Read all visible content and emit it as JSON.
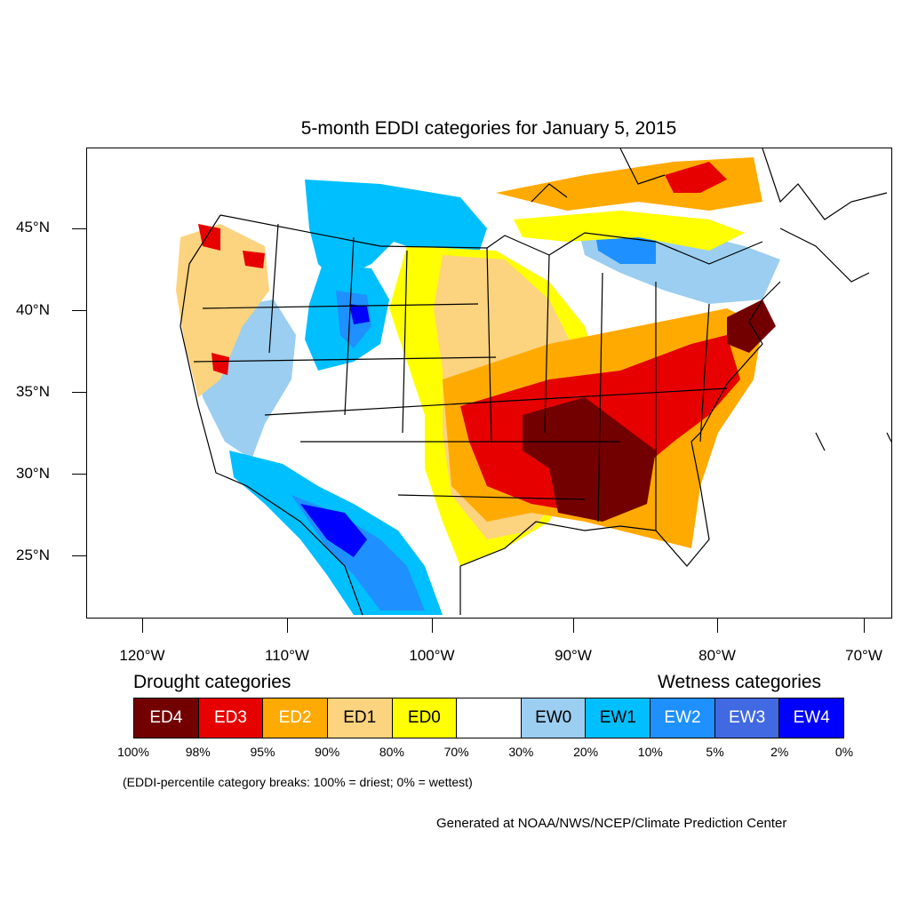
{
  "title": "5-month EDDI categories for January 5, 2015",
  "axes": {
    "lat_labels": [
      "45°N",
      "40°N",
      "35°N",
      "30°N",
      "25°N"
    ],
    "lon_labels": [
      "120°W",
      "110°W",
      "100°W",
      "90°W",
      "80°W",
      "70°W"
    ]
  },
  "legend": {
    "drought_heading": "Drought categories",
    "wetness_heading": "Wetness categories",
    "categories": [
      {
        "label": "ED4",
        "color": "#730000",
        "text_color": "#ffffff"
      },
      {
        "label": "ED3",
        "color": "#e60000",
        "text_color": "#ffffff"
      },
      {
        "label": "ED2",
        "color": "#ffaa00",
        "text_color": "#ffffff"
      },
      {
        "label": "ED1",
        "color": "#fcd37f",
        "text_color": "#000000"
      },
      {
        "label": "ED0",
        "color": "#ffff00",
        "text_color": "#000000"
      },
      {
        "label": "",
        "color": "#ffffff",
        "text_color": "#000000"
      },
      {
        "label": "EW0",
        "color": "#9bcef0",
        "text_color": "#000000"
      },
      {
        "label": "EW1",
        "color": "#00bfff",
        "text_color": "#000000"
      },
      {
        "label": "EW2",
        "color": "#1e90ff",
        "text_color": "#ffffff"
      },
      {
        "label": "EW3",
        "color": "#4169e1",
        "text_color": "#ffffff"
      },
      {
        "label": "EW4",
        "color": "#0000ff",
        "text_color": "#ffffff"
      }
    ],
    "percentile_breaks": [
      "100%",
      "98%",
      "95%",
      "90%",
      "80%",
      "70%",
      "30%",
      "20%",
      "10%",
      "5%",
      "2%",
      "0%"
    ],
    "note": "(EDDI-percentile category breaks: 100% = driest; 0% = wettest)"
  },
  "credit": "Generated at NOAA/NWS/NCEP/Climate Prediction Center"
}
